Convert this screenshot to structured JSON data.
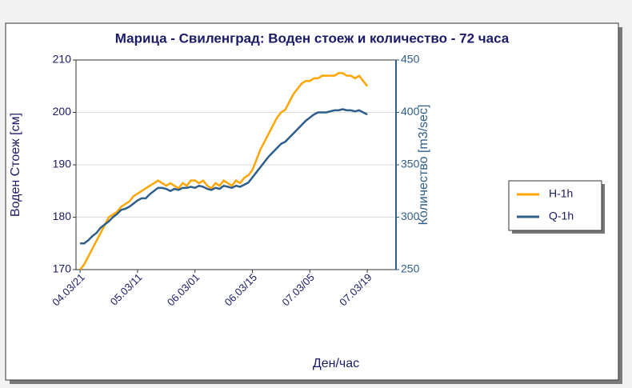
{
  "chart_data": {
    "type": "line",
    "title": "Марица - Свиленград: Воден стоеж и количество - 72 часа",
    "x_label": "Ден/час",
    "y_label": "Воден Стоеж [см]",
    "y2_label": "Количество [m3/sec]",
    "x": [
      0,
      1,
      2,
      3,
      4,
      5,
      6,
      7,
      8,
      9,
      10,
      11,
      12,
      13,
      14,
      15,
      16,
      17,
      18,
      19,
      20,
      21,
      22,
      23,
      24,
      25,
      26,
      27,
      28,
      29,
      30,
      31,
      32,
      33,
      34,
      35,
      36,
      37,
      38,
      39,
      40,
      41,
      42,
      43,
      44,
      45,
      46,
      47,
      48,
      49,
      50,
      51,
      52,
      53,
      54,
      55,
      56,
      57,
      58,
      59,
      60,
      61,
      62,
      63,
      64,
      65,
      66,
      67,
      68,
      69,
      70
    ],
    "xlim": [
      -1,
      77
    ],
    "xticks": [
      {
        "value": 0,
        "label": "04.03/21"
      },
      {
        "value": 14,
        "label": "05.03/11"
      },
      {
        "value": 28,
        "label": "06.03/01"
      },
      {
        "value": 42,
        "label": "06.03/15"
      },
      {
        "value": 56,
        "label": "07.03/05"
      },
      {
        "value": 70,
        "label": "07.03/19"
      }
    ],
    "ylim": [
      170,
      210
    ],
    "yticks": [
      170,
      180,
      190,
      200,
      210
    ],
    "y2lim": [
      250,
      450
    ],
    "y2ticks": [
      250,
      300,
      350,
      400,
      450
    ],
    "grid": true,
    "legend": "right",
    "series": [
      {
        "name": "H-1h",
        "color": "#ffa500",
        "values": [
          170,
          171,
          172.5,
          174,
          175.5,
          177,
          178.5,
          180,
          180.5,
          181,
          182,
          182.5,
          183,
          184,
          184.5,
          185,
          185.5,
          186,
          186.5,
          187,
          186.5,
          186,
          186.5,
          186,
          185.5,
          186.5,
          186,
          187,
          187,
          186.5,
          187,
          186,
          185.5,
          186.5,
          186,
          187,
          186.5,
          186,
          187,
          186.5,
          187.5,
          188,
          189,
          191,
          193,
          194.5,
          196,
          197.5,
          199,
          200,
          200.5,
          202,
          203.5,
          204.5,
          205.5,
          206,
          206,
          206.5,
          206.5,
          207,
          207,
          207,
          207,
          207.5,
          207.5,
          207,
          207,
          206.5,
          207,
          206,
          205
        ]
      },
      {
        "name": "Q-1h",
        "color": "#2e5e8a",
        "axis": "y2",
        "values": [
          275,
          275,
          278,
          282,
          285,
          290,
          293,
          296,
          300,
          303,
          307,
          308,
          310,
          313,
          316,
          318,
          318,
          322,
          325,
          328,
          328,
          327,
          325,
          327,
          326,
          328,
          328,
          329,
          328,
          330,
          329,
          327,
          326,
          328,
          327,
          330,
          329,
          328,
          330,
          329,
          331,
          333,
          338,
          343,
          348,
          353,
          358,
          362,
          366,
          370,
          372,
          376,
          380,
          384,
          388,
          392,
          395,
          398,
          400,
          400,
          400,
          401,
          402,
          402,
          403,
          402,
          402,
          401,
          402,
          400,
          398
        ]
      }
    ]
  }
}
